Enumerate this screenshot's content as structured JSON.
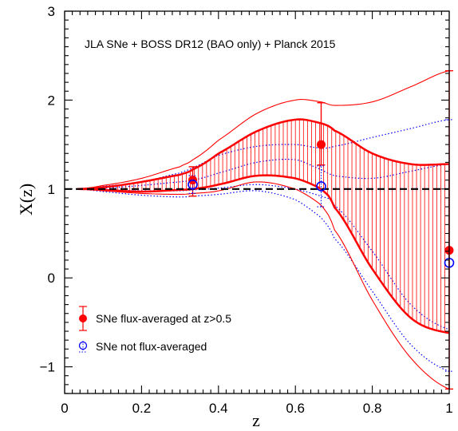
{
  "chart_data": {
    "type": "line",
    "xlabel": "z",
    "ylabel": "X(z)",
    "xlim": [
      0,
      1.0
    ],
    "ylim": [
      -1.3,
      3.0
    ],
    "x_ticks": [
      0,
      0.2,
      0.4,
      0.6,
      0.8,
      1
    ],
    "x_tick_labels": [
      "0",
      "0.2",
      "0.4",
      "0.6",
      "0.8",
      "1"
    ],
    "y_ticks": [
      -1,
      0,
      1,
      2,
      3
    ],
    "y_tick_labels": [
      "−1",
      "0",
      "1",
      "2",
      "3"
    ],
    "grid": false,
    "annotation": "JLA SNe + BOSS DR12 (BAO only) + Planck 2015",
    "reference_line": {
      "y": 1,
      "style": "dashed",
      "color": "#000000"
    },
    "band_hatched": {
      "color": "#ff0000",
      "lower": {
        "x": [
          0.033,
          0.1,
          0.2,
          0.3,
          0.333,
          0.4,
          0.5,
          0.6,
          0.667,
          0.7,
          0.8,
          0.9,
          1.0
        ],
        "y": [
          1.0,
          0.99,
          0.97,
          0.99,
          1.0,
          1.05,
          1.15,
          1.12,
          1.0,
          0.8,
          0.1,
          -0.45,
          -0.62
        ]
      },
      "upper": {
        "x": [
          0.033,
          0.1,
          0.2,
          0.3,
          0.333,
          0.4,
          0.5,
          0.6,
          0.667,
          0.7,
          0.8,
          0.9,
          1.0
        ],
        "y": [
          1.0,
          1.02,
          1.08,
          1.16,
          1.22,
          1.4,
          1.65,
          1.78,
          1.74,
          1.66,
          1.4,
          1.28,
          1.28
        ]
      }
    },
    "band_outer": {
      "color": "#ff0000",
      "lower": {
        "x": [
          0.033,
          0.1,
          0.2,
          0.3,
          0.333,
          0.4,
          0.5,
          0.6,
          0.667,
          0.7,
          0.8,
          0.9,
          1.0
        ],
        "y": [
          1.0,
          0.98,
          0.95,
          0.94,
          0.95,
          0.98,
          1.08,
          1.0,
          0.82,
          0.55,
          -0.25,
          -0.9,
          -1.25
        ]
      },
      "upper": {
        "x": [
          0.033,
          0.1,
          0.2,
          0.3,
          0.333,
          0.4,
          0.5,
          0.6,
          0.667,
          0.7,
          0.8,
          0.9,
          1.0
        ],
        "y": [
          1.0,
          1.04,
          1.12,
          1.25,
          1.33,
          1.55,
          1.85,
          2.0,
          1.98,
          1.94,
          1.98,
          2.15,
          2.33
        ]
      }
    },
    "series": [
      {
        "name": "SNe flux-averaged at z>0.5",
        "color": "#ff0000",
        "marker": "filled-circle",
        "points": [
          {
            "x": 0.333,
            "y": 1.1,
            "ylo": 0.92,
            "yhi": 1.25
          },
          {
            "x": 0.667,
            "y": 1.5,
            "ylo": 1.27,
            "yhi": 1.97
          },
          {
            "x": 1.0,
            "y": 0.31,
            "ylo": -1.25,
            "yhi": 2.33
          }
        ]
      },
      {
        "name": "SNe not flux-averaged",
        "color": "#0000ff",
        "marker": "open-circle",
        "points": [
          {
            "x": 0.333,
            "y": 1.05,
            "ylo": 0.95,
            "yhi": 1.15
          },
          {
            "x": 0.667,
            "y": 1.03,
            "ylo": 0.8,
            "yhi": 1.26
          },
          {
            "x": 1.0,
            "y": 0.17,
            "ylo": -1.05,
            "yhi": 1.78
          }
        ],
        "bands": [
          {
            "lower": {
              "x": [
                0.033,
                0.1,
                0.2,
                0.3,
                0.333,
                0.4,
                0.5,
                0.6,
                0.667,
                0.7,
                0.8,
                0.9,
                1.0
              ],
              "y": [
                1.0,
                0.99,
                0.98,
                0.98,
                0.99,
                1.01,
                1.05,
                1.0,
                0.92,
                0.82,
                0.3,
                -0.3,
                -0.58
              ]
            },
            "upper": {
              "x": [
                0.033,
                0.1,
                0.2,
                0.3,
                0.333,
                0.4,
                0.5,
                0.6,
                0.667,
                0.7,
                0.8,
                0.9,
                1.0
              ],
              "y": [
                1.0,
                1.01,
                1.04,
                1.08,
                1.1,
                1.18,
                1.3,
                1.33,
                1.22,
                1.15,
                1.12,
                1.2,
                1.28
              ]
            }
          },
          {
            "lower": {
              "x": [
                0.033,
                0.1,
                0.2,
                0.3,
                0.333,
                0.4,
                0.5,
                0.6,
                0.667,
                0.7,
                0.8,
                0.9,
                1.0
              ],
              "y": [
                1.0,
                0.97,
                0.93,
                0.91,
                0.92,
                0.94,
                0.98,
                0.88,
                0.68,
                0.45,
                -0.15,
                -0.75,
                -1.05
              ]
            },
            "upper": {
              "x": [
                0.033,
                0.1,
                0.2,
                0.3,
                0.333,
                0.4,
                0.5,
                0.6,
                0.667,
                0.7,
                0.8,
                0.9,
                1.0
              ],
              "y": [
                1.0,
                1.03,
                1.08,
                1.18,
                1.24,
                1.38,
                1.48,
                1.5,
                1.46,
                1.48,
                1.58,
                1.68,
                1.78
              ]
            }
          }
        ]
      }
    ],
    "legend": {
      "position": "bottom-left",
      "entries": [
        "SNe flux-averaged at z>0.5",
        "SNe not flux-averaged"
      ]
    }
  }
}
